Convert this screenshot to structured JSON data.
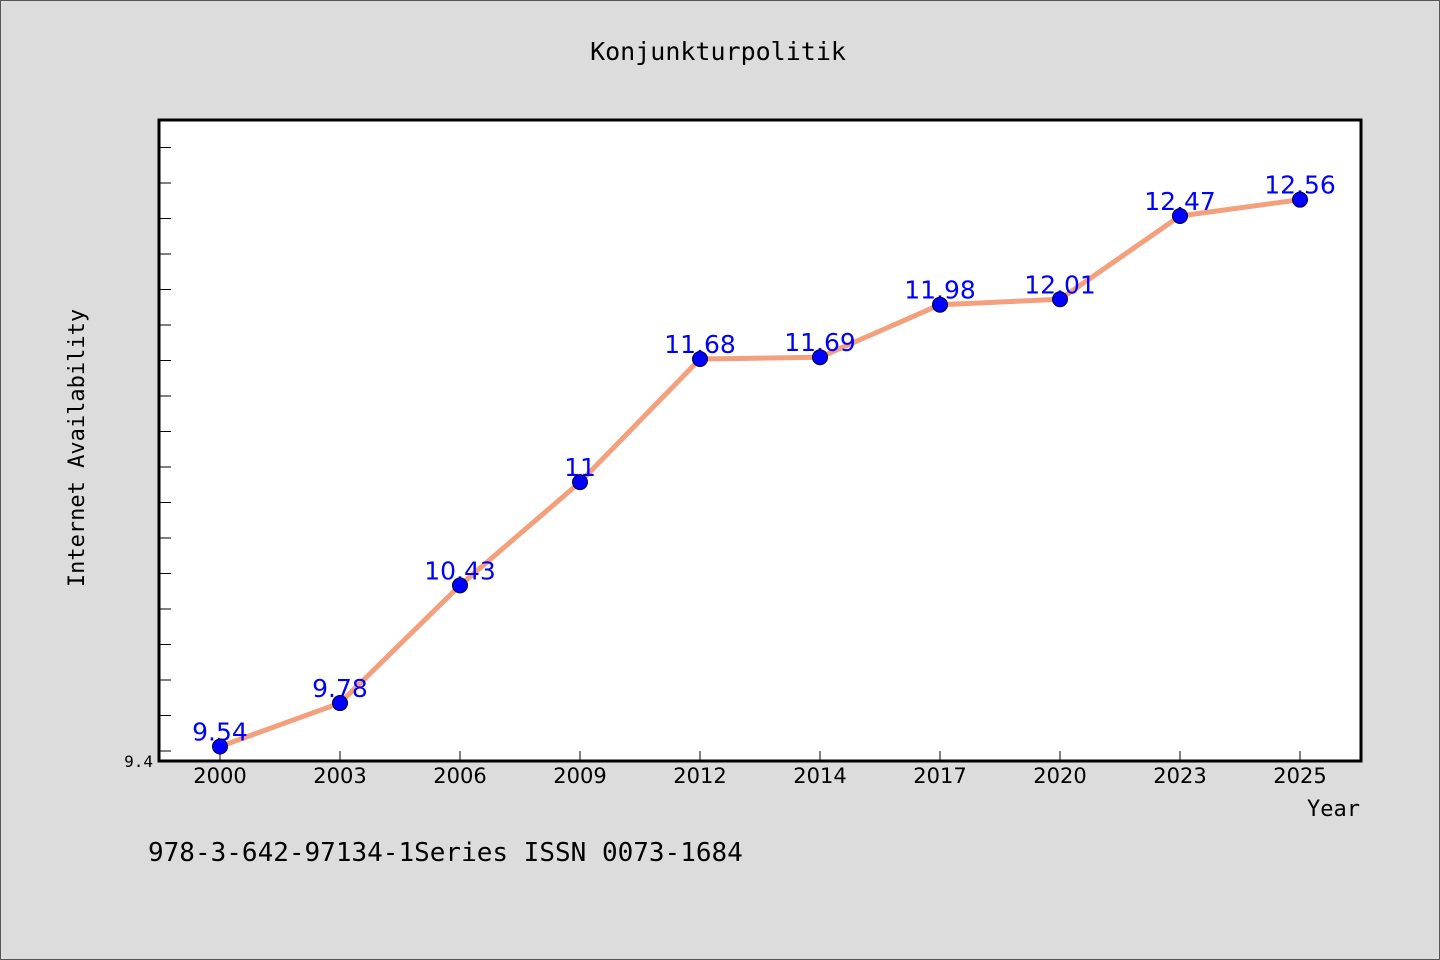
{
  "chart_data": {
    "type": "line",
    "title": "Konjunkturpolitik",
    "xlabel": "Year",
    "ylabel": "Internet Availability",
    "categories": [
      "2000",
      "2003",
      "2006",
      "2009",
      "2012",
      "2014",
      "2017",
      "2020",
      "2023",
      "2025"
    ],
    "series": [
      {
        "values": [
          9.54,
          9.78,
          10.43,
          11,
          11.68,
          11.69,
          11.98,
          12.01,
          12.47,
          12.56
        ],
        "labels": [
          "9.54",
          "9.78",
          "10.43",
          "11",
          "11.68",
          "11.69",
          "11.98",
          "12.01",
          "12.47",
          "12.56"
        ],
        "line_color": "#f4a07c",
        "marker_color": "#0000ff"
      }
    ],
    "ylim": [
      9.46,
      13.0
    ],
    "y_tick_labels": [
      "9.4"
    ],
    "grid": false,
    "legend": "none"
  },
  "footer_text": "978-3-642-97134-1Series ISSN 0073-1684"
}
